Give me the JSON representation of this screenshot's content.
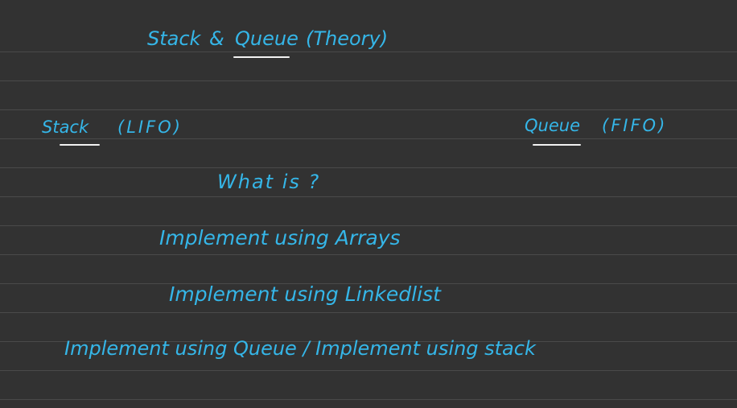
{
  "title": {
    "stack": "Stack",
    "amp": "&",
    "queue": "Queue",
    "note": "(Theory)"
  },
  "left_heading": {
    "word": "Stack",
    "paren": "(LIFO)"
  },
  "right_heading": {
    "word": "Queue",
    "paren": "(FIFO)"
  },
  "topics": [
    "What is ?",
    "Implement using Arrays",
    "Implement using Linkedlist",
    "Implement using Queue / Implement using stack"
  ],
  "colors": {
    "ink": "#35b6e8",
    "underline": "#f2f2f2",
    "background": "#323232",
    "rule": "#4a4a4a"
  }
}
